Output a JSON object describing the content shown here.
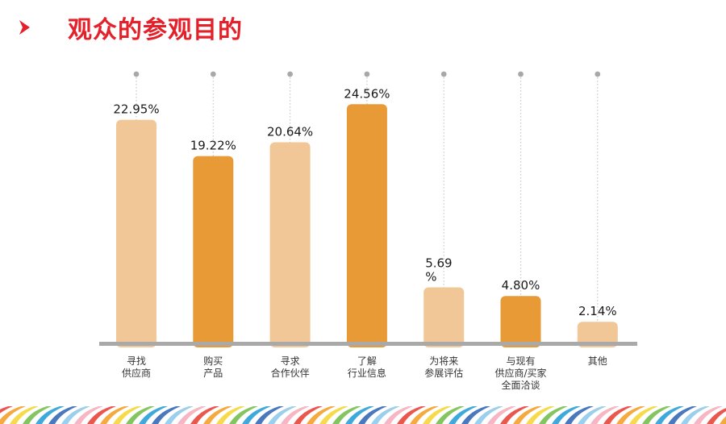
{
  "title": "观众的参观目的",
  "colors": {
    "title": "#e4202a",
    "bar_light": "#f2c797",
    "bar_dark": "#e89a36",
    "baseline": "#a9a9a9",
    "guide": "#c9c9c9"
  },
  "icons": [
    "chevron-right-icon"
  ],
  "chart_data": {
    "type": "bar",
    "categories": [
      [
        "寻找",
        "供应商"
      ],
      [
        "购买",
        "产品"
      ],
      [
        "寻求",
        "合作伙伴"
      ],
      [
        "了解",
        "行业信息"
      ],
      [
        "为将来",
        "参展评估"
      ],
      [
        "与现有",
        "供应商/买家",
        "全面洽谈"
      ],
      [
        "其他"
      ]
    ],
    "values": [
      22.95,
      19.22,
      20.64,
      24.56,
      5.69,
      4.8,
      2.14
    ],
    "value_labels": [
      [
        "22.95%"
      ],
      [
        "19.22%"
      ],
      [
        "20.64%"
      ],
      [
        "24.56%"
      ],
      [
        "5.69",
        "%"
      ],
      [
        "4.80%"
      ],
      [
        "2.14%"
      ]
    ],
    "bar_tones": [
      "light",
      "dark",
      "light",
      "dark",
      "light",
      "dark",
      "light"
    ],
    "ylim": [
      0,
      25
    ],
    "grid": false,
    "legend": "none"
  }
}
